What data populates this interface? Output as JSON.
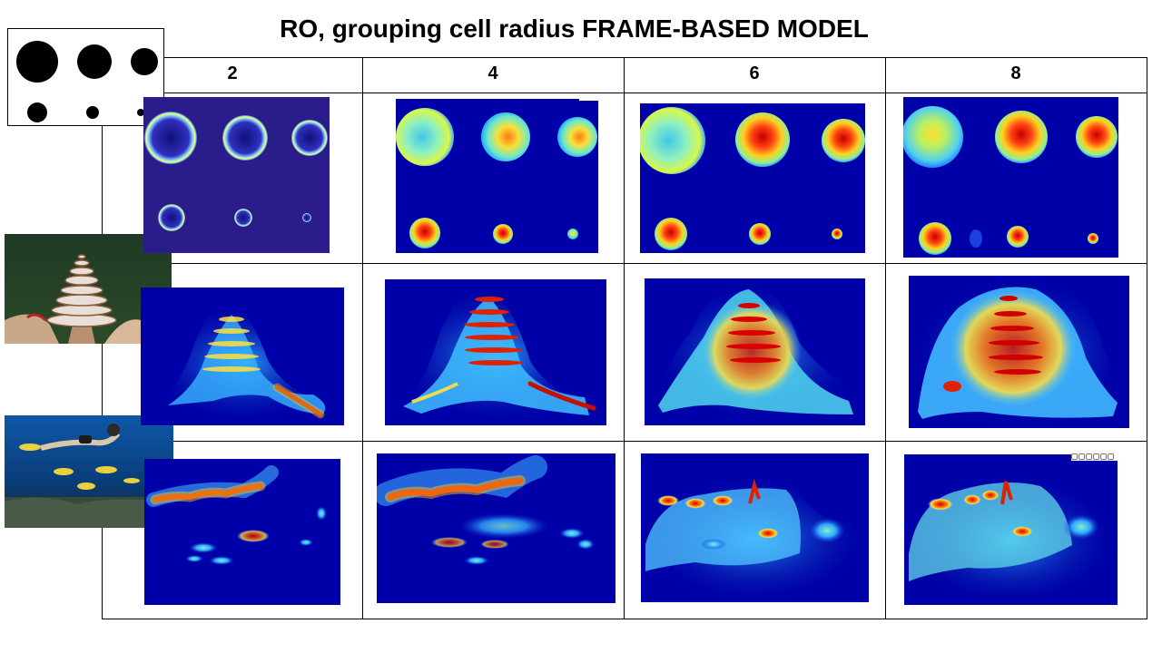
{
  "title": "RO, grouping cell radius FRAME-BASED MODEL",
  "columns": [
    {
      "label": "2"
    },
    {
      "label": "4"
    },
    {
      "label": "6"
    },
    {
      "label": "8"
    }
  ],
  "rows": [
    {
      "stimulus": "disc-pattern"
    },
    {
      "stimulus": "christmas-tree-worm-photo"
    },
    {
      "stimulus": "diver-and-fish-photo"
    }
  ],
  "colors": {
    "heatmap_background": "#00008b",
    "heatmap_hot": "#cc0000",
    "grid_line": "#000000"
  },
  "icons": [
    "zoom-in-icon",
    "zoom-out-icon",
    "pan-icon",
    "rotate-icon",
    "data-cursor-icon",
    "restore-icon"
  ]
}
